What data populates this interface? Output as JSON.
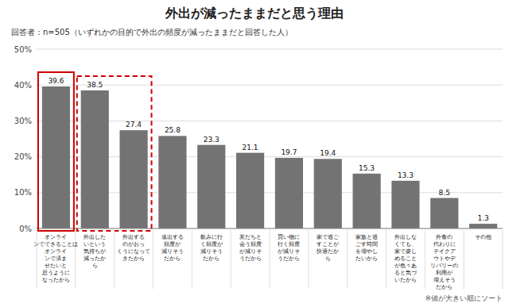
{
  "chart_data": {
    "type": "bar",
    "title": "外出が減ったままだと思う理由",
    "subtitle": "回答者：n=505（いずれかの目的で外出の頻度が減ったままだと回答した人）",
    "annotations": [
      "※値が大きい順にソート"
    ],
    "categories": [
      "オンライ\nンでできることは\nオンライ\nンで済ま\nせたいと\n思うように\nなったから",
      "外出した\nいという\n気持ちが\n減ったか\nら",
      "外出する\nのがおっ\nくうになって\nきたから",
      "遠出する\n頻度が\n減りそう\nだから",
      "飲みに行\nく頻度が\n減りそう\nだから",
      "友だちと\n会う頻度\nが減りそ\nうだから",
      "買い物に\n行く頻度\nが減りそ\nうだから",
      "家で過ご\nすことが\n快適だか\nら",
      "家族と過\nごす時間\nを増やし\nたいから",
      "外出しな\nくても、\n家で楽し\nめること\nが色々あ\nると気づ\nいたから",
      "外食の\n代わりに\nテイクア\nウトやデ\nリバリーの\n利用が\n増えそう\nだから",
      "その他"
    ],
    "values": [
      39.6,
      38.5,
      27.4,
      25.8,
      23.3,
      21.1,
      19.7,
      19.4,
      15.3,
      13.3,
      8.5,
      1.3
    ],
    "color": "#737373",
    "ylim": [
      0,
      50
    ],
    "yticks": [
      {
        "value": 0,
        "label": "0%"
      },
      {
        "value": 10,
        "label": "10%"
      },
      {
        "value": 20,
        "label": "20%"
      },
      {
        "value": 30,
        "label": "30%"
      },
      {
        "value": 40,
        "label": "40%"
      },
      {
        "value": 50,
        "label": "50%"
      }
    ],
    "grid": true,
    "data_labels": true
  }
}
